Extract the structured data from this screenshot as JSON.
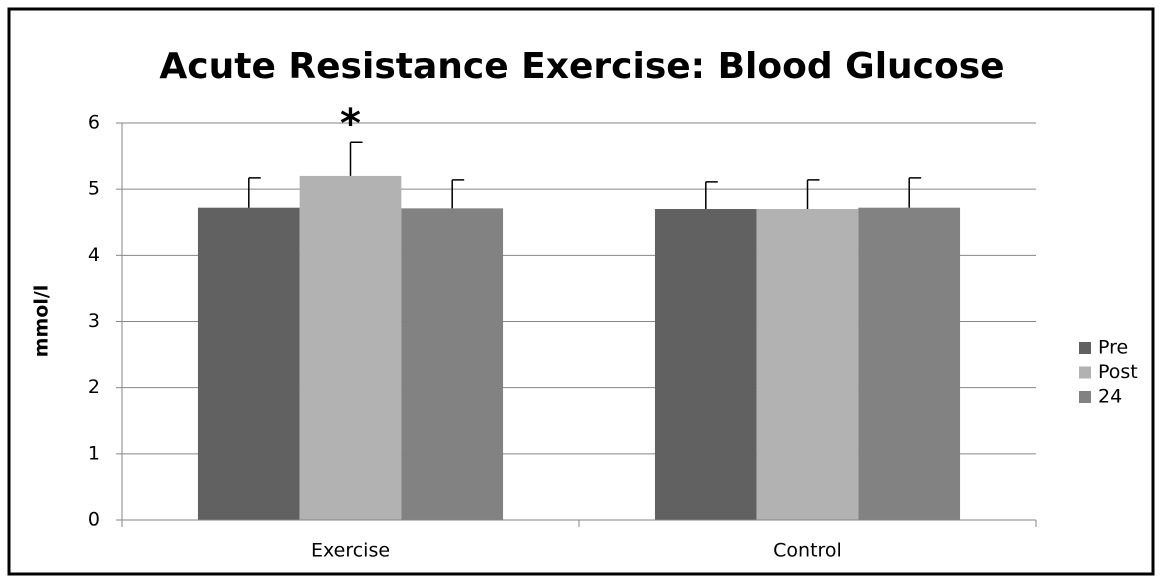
{
  "chart_data": {
    "type": "bar",
    "title": "Acute Resistance Exercise: Blood Glucose",
    "y_label": "mmol/l",
    "annotation": "*",
    "categories": [
      "Exercise",
      "Control"
    ],
    "series": [
      {
        "name": "Pre",
        "color": "#616161",
        "values": [
          4.72,
          4.7
        ],
        "errors": [
          0.45,
          0.41
        ]
      },
      {
        "name": "Post",
        "color": "#b2b2b2",
        "values": [
          5.2,
          4.7
        ],
        "errors": [
          0.51,
          0.44
        ]
      },
      {
        "name": "24",
        "color": "#828282",
        "values": [
          4.71,
          4.72
        ],
        "errors": [
          0.43,
          0.45
        ]
      }
    ],
    "ylim": [
      0,
      6
    ],
    "yticks": [
      0,
      1,
      2,
      3,
      4,
      5,
      6
    ],
    "grid": true,
    "legend": "right"
  }
}
